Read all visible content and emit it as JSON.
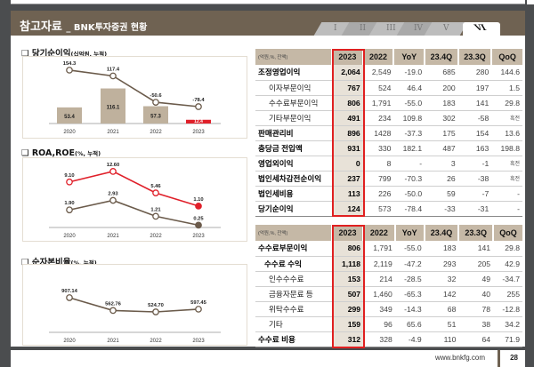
{
  "header": {
    "title": "참고자료",
    "subtitle": "_ BNK투자증권 현황",
    "tabs": [
      {
        "label": "I"
      },
      {
        "label": "II"
      },
      {
        "label": "III"
      },
      {
        "label": "IV"
      },
      {
        "label": "V"
      },
      {
        "label": "VI",
        "active": true
      }
    ]
  },
  "sections": {
    "net_income": {
      "title": "당기순이익",
      "unit": "(십억원, 누적)"
    },
    "roa_roe": {
      "title": "ROA,ROE",
      "unit": "(%, 누적)"
    },
    "ncr": {
      "title": "순자본비율",
      "unit": "(%, 누적)"
    }
  },
  "chart_data": [
    {
      "type": "bar+line",
      "categories": [
        "2020",
        "2021",
        "2022",
        "2023"
      ],
      "series": [
        {
          "kind": "bar",
          "values": [
            53.4,
            116.1,
            57.3,
            12.4
          ],
          "labels": [
            "53.4",
            "116.1",
            "57.3",
            "12.4"
          ],
          "colors": [
            "#bfb19d",
            "#bfb19d",
            "#bfb19d",
            "#e0202a"
          ],
          "ylim": [
            0,
            203
          ]
        },
        {
          "kind": "line",
          "values": [
            154.3,
            117.4,
            -50.6,
            -78.4
          ],
          "labels": [
            "154.3",
            "117.4",
            "-50.6",
            "-78.4"
          ],
          "color": "#6b5b4b",
          "ylim": [
            -186,
            205
          ]
        }
      ]
    },
    {
      "type": "line",
      "categories": [
        "2020",
        "2021",
        "2022",
        "2023"
      ],
      "series": [
        {
          "values": [
            9.1,
            12.6,
            5.46,
            1.1
          ],
          "labels": [
            "9.10",
            "12.60",
            "5.46",
            "1.10"
          ],
          "color": "#e0202a",
          "ylim": [
            -6,
            16.4
          ]
        },
        {
          "values": [
            1.9,
            2.93,
            1.21,
            0.25
          ],
          "labels": [
            "1.90",
            "2.93",
            "1.21",
            "0.25"
          ],
          "color": "#6b5b4b",
          "ylim": [
            0,
            7.3
          ]
        }
      ]
    },
    {
      "type": "line",
      "categories": [
        "2020",
        "2021",
        "2022",
        "2023"
      ],
      "series": [
        {
          "values": [
            907.14,
            562.76,
            524.7,
            597.45
          ],
          "labels": [
            "907.14",
            "562.76",
            "524.70",
            "597.45"
          ],
          "color": "#6b5b4b",
          "ylim": [
            -25,
            1743
          ]
        }
      ]
    }
  ],
  "table1": {
    "unit": "(억원,%, 잔액)",
    "columns": [
      "2023",
      "2022",
      "YoY",
      "23.4Q",
      "23.3Q",
      "QoQ"
    ],
    "rows": [
      {
        "label": "조정영업이익",
        "bold": true,
        "indent": 0,
        "values": [
          "2,064",
          "2,549",
          "-19.0",
          "685",
          "280",
          "144.6"
        ]
      },
      {
        "label": "이자부문이익",
        "indent": 2,
        "values": [
          "767",
          "524",
          "46.4",
          "200",
          "197",
          "1.5"
        ]
      },
      {
        "label": "수수료부문이익",
        "indent": 2,
        "values": [
          "806",
          "1,791",
          "-55.0",
          "183",
          "141",
          "29.8"
        ]
      },
      {
        "label": "기타부문이익",
        "indent": 2,
        "values": [
          "491",
          "234",
          "109.8",
          "302",
          "-58",
          "흑전"
        ]
      },
      {
        "label": "판매관리비",
        "bold": true,
        "indent": 0,
        "values": [
          "896",
          "1428",
          "-37.3",
          "175",
          "154",
          "13.6"
        ]
      },
      {
        "label": "충당금 전입액",
        "bold": true,
        "indent": 0,
        "values": [
          "931",
          "330",
          "182.1",
          "487",
          "163",
          "198.8"
        ]
      },
      {
        "label": "영업외이익",
        "bold": true,
        "indent": 0,
        "values": [
          "0",
          "8",
          "-",
          "3",
          "-1",
          "흑전"
        ]
      },
      {
        "label": "법인세차감전순이익",
        "bold": true,
        "indent": 0,
        "values": [
          "237",
          "799",
          "-70.3",
          "26",
          "-38",
          "흑전"
        ]
      },
      {
        "label": "법인세비용",
        "bold": true,
        "indent": 0,
        "values": [
          "113",
          "226",
          "-50.0",
          "59",
          "-7",
          "-"
        ]
      },
      {
        "label": "당기순이익",
        "bold": true,
        "indent": 0,
        "values": [
          "124",
          "573",
          "-78.4",
          "-33",
          "-31",
          "-"
        ]
      }
    ]
  },
  "table2": {
    "unit": "(억원,%, 잔액)",
    "columns": [
      "2023",
      "2022",
      "YoY",
      "23.4Q",
      "23.3Q",
      "QoQ"
    ],
    "rows": [
      {
        "label": "수수료부문이익",
        "bold": true,
        "indent": 0,
        "values": [
          "806",
          "1,791",
          "-55.0",
          "183",
          "141",
          "29.8"
        ]
      },
      {
        "label": "수수료 수익",
        "bold": true,
        "indent": 1,
        "values": [
          "1,118",
          "2,119",
          "-47.2",
          "293",
          "205",
          "42.9"
        ]
      },
      {
        "label": "인수수수료",
        "indent": 2,
        "values": [
          "153",
          "214",
          "-28.5",
          "32",
          "49",
          "-34.7"
        ]
      },
      {
        "label": "금융자문료 등",
        "indent": 2,
        "values": [
          "507",
          "1,460",
          "-65.3",
          "142",
          "40",
          "255"
        ]
      },
      {
        "label": "위탁수수료",
        "indent": 2,
        "values": [
          "299",
          "349",
          "-14.3",
          "68",
          "78",
          "-12.8"
        ]
      },
      {
        "label": "기타",
        "indent": 2,
        "values": [
          "159",
          "96",
          "65.6",
          "51",
          "38",
          "34.2"
        ]
      },
      {
        "label": "수수료 비용",
        "bold": true,
        "indent": 0,
        "values": [
          "312",
          "328",
          "-4.9",
          "110",
          "64",
          "71.9"
        ]
      }
    ]
  },
  "footer": {
    "url": "www.bnkfg.com",
    "page": "28"
  }
}
